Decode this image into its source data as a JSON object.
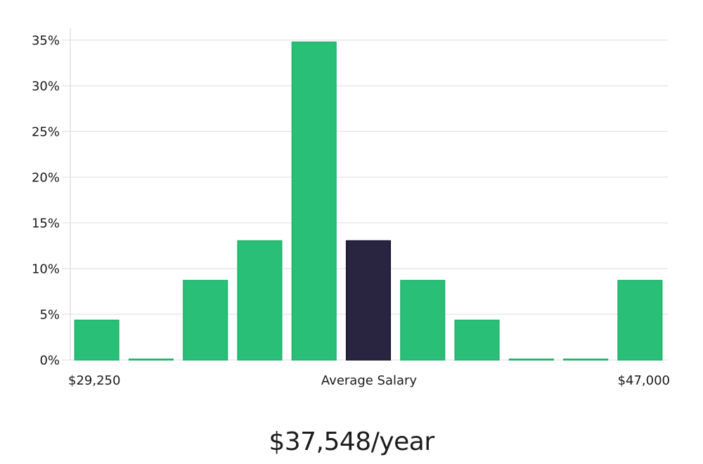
{
  "chart_data": {
    "type": "bar",
    "ylim": [
      0,
      35
    ],
    "yticks": [
      "0%",
      "5%",
      "10%",
      "15%",
      "20%",
      "25%",
      "30%",
      "35%"
    ],
    "x_labels": {
      "min": "$29,250",
      "center": "Average Salary",
      "max": "$47,000"
    },
    "values": [
      4.35,
      0,
      8.7,
      13.04,
      34.78,
      13.04,
      8.7,
      4.35,
      0,
      0,
      8.7
    ],
    "highlight_index": 5,
    "grid": true,
    "colors": {
      "bar": "#29bf76",
      "bar_edge": "#1fb06a",
      "highlight": "#292541",
      "highlight_edge": "#16132b",
      "grid": "#e3e3e3",
      "axis": "#d9d9d9"
    }
  },
  "summary": {
    "salary_text": "$37,548/year"
  }
}
